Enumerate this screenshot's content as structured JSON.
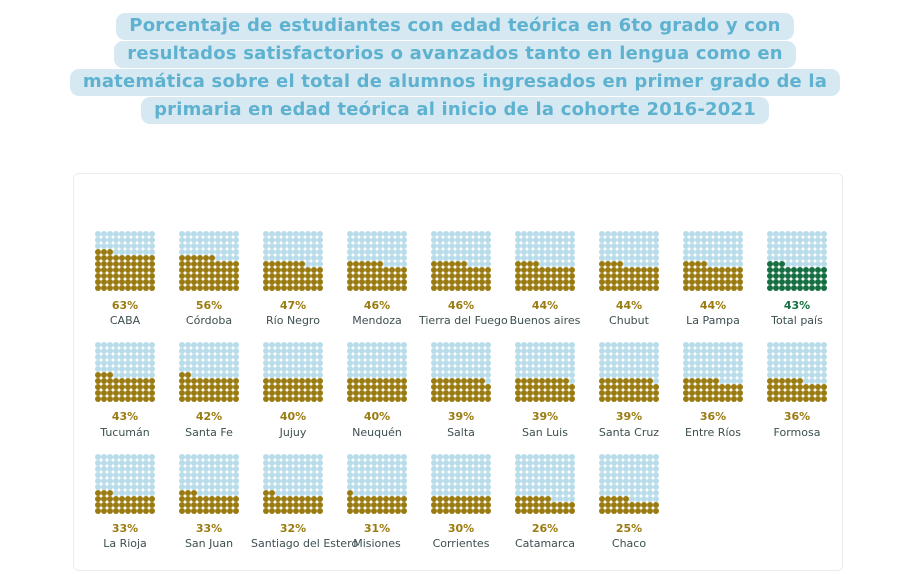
{
  "title": {
    "full_text": "Porcentaje de estudiantes con edad teórica en 6to grado y con resultados satisfactorios o avanzados tanto en lengua como en matemática sobre el total de alumnos ingresados en primer grado de la primaria en edad teórica al inicio de la cohorte 2016-2021",
    "lines": [
      "Porcentaje de estudiantes con edad teórica en 6to grado y con",
      "resultados satisfactorios o avanzados tanto en lengua como en",
      "matemática sobre el total de alumnos ingresados en primer grado de la",
      "primaria en edad teórica al inicio de la cohorte 2016-2021"
    ],
    "text_color": "#5eb2d0",
    "highlight_color": "#d6e9f2"
  },
  "chart_data": {
    "type": "waffle",
    "unit": "percent",
    "grid": {
      "rows": 10,
      "cols": 10,
      "dot_value": 1,
      "fill_origin": "bottom-left"
    },
    "rows_layout": [
      9,
      9,
      7
    ],
    "series": [
      {
        "name": "CABA",
        "value": 63
      },
      {
        "name": "Córdoba",
        "value": 56
      },
      {
        "name": "Río Negro",
        "value": 47
      },
      {
        "name": "Mendoza",
        "value": 46
      },
      {
        "name": "Tierra del Fuego",
        "value": 46
      },
      {
        "name": "Buenos aires",
        "value": 44
      },
      {
        "name": "Chubut",
        "value": 44
      },
      {
        "name": "La Pampa",
        "value": 44
      },
      {
        "name": "Total país",
        "value": 43,
        "highlight": true
      },
      {
        "name": "Tucumán",
        "value": 43
      },
      {
        "name": "Santa Fe",
        "value": 42
      },
      {
        "name": "Jujuy",
        "value": 40
      },
      {
        "name": "Neuquén",
        "value": 40
      },
      {
        "name": "Salta",
        "value": 39
      },
      {
        "name": "San Luis",
        "value": 39
      },
      {
        "name": "Santa Cruz",
        "value": 39
      },
      {
        "name": "Entre Ríos",
        "value": 36
      },
      {
        "name": "Formosa",
        "value": 36
      },
      {
        "name": "La Rioja",
        "value": 33
      },
      {
        "name": "San Juan",
        "value": 33
      },
      {
        "name": "Santiago del Estero",
        "value": 32
      },
      {
        "name": "Misiones",
        "value": 31
      },
      {
        "name": "Corrientes",
        "value": 30
      },
      {
        "name": "Catamarca",
        "value": 26
      },
      {
        "name": "Chaco",
        "value": 25
      }
    ],
    "colors": {
      "filled": "#9a7b12",
      "empty": "#b8dcea",
      "highlight_filled": "#166f42",
      "value_label": "#9a7b12",
      "highlight_value_label": "#166f42",
      "province_label": "#3d4f50",
      "card_border": "#ececec"
    }
  }
}
